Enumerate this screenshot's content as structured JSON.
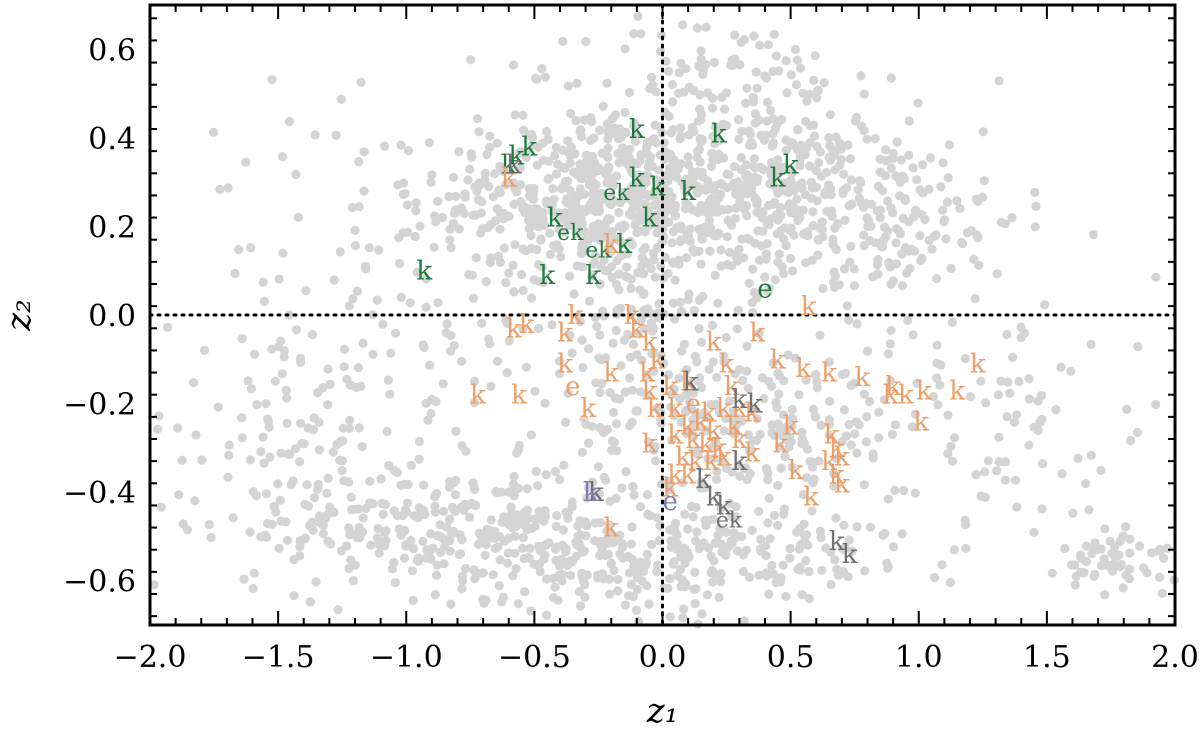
{
  "chart_data": {
    "type": "scatter",
    "xlabel": "z₁",
    "ylabel": "z₂",
    "xlim": [
      -2.0,
      2.0
    ],
    "ylim": [
      -0.7,
      0.7
    ],
    "x_ticks": [
      -2.0,
      -1.5,
      -1.0,
      -0.5,
      0.0,
      0.5,
      1.0,
      1.5,
      2.0
    ],
    "x_tick_labels": [
      "−2.0",
      "−1.5",
      "−1.0",
      "−0.5",
      "0.0",
      "0.5",
      "1.0",
      "1.5",
      "2.0"
    ],
    "y_ticks": [
      -0.6,
      -0.4,
      -0.2,
      0.0,
      0.2,
      0.4,
      0.6
    ],
    "y_tick_labels": [
      "−0.6",
      "−0.4",
      "−0.2",
      "0.0",
      "0.2",
      "0.4",
      "0.6"
    ],
    "grid": false,
    "reference_lines": {
      "x": 0.0,
      "y": 0.0,
      "style": "dotted"
    },
    "colors": {
      "background_points": "#d4d4d4",
      "green": "#1e7a3c",
      "orange": "#ee9e68",
      "gray": "#707070",
      "purple": "#7f7fb0"
    },
    "background_points": {
      "description_count_approx": 2000,
      "clusters": [
        {
          "cx": -0.3,
          "cy": 0.27,
          "sx": 0.28,
          "sy": 0.1,
          "n": 420
        },
        {
          "cx": 0.35,
          "cy": 0.28,
          "sx": 0.3,
          "sy": 0.1,
          "n": 420
        },
        {
          "cx": 0.9,
          "cy": 0.22,
          "sx": 0.25,
          "sy": 0.09,
          "n": 120
        },
        {
          "cx": 0.2,
          "cy": 0.55,
          "sx": 0.25,
          "sy": 0.06,
          "n": 70
        },
        {
          "cx": -0.1,
          "cy": 0.1,
          "sx": 0.15,
          "sy": 0.15,
          "n": 120
        },
        {
          "cx": 0.3,
          "cy": -0.25,
          "sx": 0.3,
          "sy": 0.12,
          "n": 240
        },
        {
          "cx": -0.8,
          "cy": -0.48,
          "sx": 0.4,
          "sy": 0.07,
          "n": 260
        },
        {
          "cx": -0.3,
          "cy": -0.55,
          "sx": 0.3,
          "sy": 0.06,
          "n": 160
        },
        {
          "cx": 0.4,
          "cy": -0.55,
          "sx": 0.3,
          "sy": 0.07,
          "n": 110
        },
        {
          "cx": 1.8,
          "cy": -0.55,
          "sx": 0.12,
          "sy": 0.04,
          "n": 60
        },
        {
          "cx": -1.4,
          "cy": -0.3,
          "sx": 0.3,
          "sy": 0.12,
          "n": 100
        },
        {
          "cx": -1.0,
          "cy": 0.05,
          "sx": 0.4,
          "sy": 0.2,
          "n": 120
        },
        {
          "cx": 1.3,
          "cy": -0.25,
          "sx": 0.35,
          "sy": 0.15,
          "n": 90
        },
        {
          "cx": 0.0,
          "cy": 0.0,
          "sx": 1.0,
          "sy": 0.35,
          "n": 160
        }
      ]
    },
    "series": [
      {
        "color": "green",
        "points": [
          {
            "x": -0.6,
            "y": 0.34,
            "label": "k"
          },
          {
            "x": -0.57,
            "y": 0.36,
            "label": "k"
          },
          {
            "x": -0.52,
            "y": 0.38,
            "label": "k"
          },
          {
            "x": -0.1,
            "y": 0.42,
            "label": "k"
          },
          {
            "x": 0.22,
            "y": 0.41,
            "label": "k"
          },
          {
            "x": 0.45,
            "y": 0.31,
            "label": "k"
          },
          {
            "x": 0.5,
            "y": 0.34,
            "label": "k"
          },
          {
            "x": -0.1,
            "y": 0.31,
            "label": "k"
          },
          {
            "x": -0.18,
            "y": 0.28,
            "label": "ek"
          },
          {
            "x": -0.02,
            "y": 0.29,
            "label": "k"
          },
          {
            "x": 0.1,
            "y": 0.28,
            "label": "k"
          },
          {
            "x": -0.42,
            "y": 0.22,
            "label": "k"
          },
          {
            "x": -0.36,
            "y": 0.19,
            "label": "ek"
          },
          {
            "x": -0.05,
            "y": 0.22,
            "label": "k"
          },
          {
            "x": -0.25,
            "y": 0.15,
            "label": "ek"
          },
          {
            "x": -0.15,
            "y": 0.16,
            "label": "k"
          },
          {
            "x": -0.93,
            "y": 0.1,
            "label": "k"
          },
          {
            "x": -0.45,
            "y": 0.09,
            "label": "k"
          },
          {
            "x": -0.27,
            "y": 0.09,
            "label": "k"
          },
          {
            "x": 0.4,
            "y": 0.06,
            "label": "e"
          }
        ]
      },
      {
        "color": "orange",
        "points": [
          {
            "x": -0.6,
            "y": 0.31,
            "label": "k"
          },
          {
            "x": -0.2,
            "y": 0.16,
            "label": "k"
          },
          {
            "x": 0.57,
            "y": 0.02,
            "label": "k"
          },
          {
            "x": -0.58,
            "y": -0.03,
            "label": "k"
          },
          {
            "x": -0.53,
            "y": -0.02,
            "label": "k"
          },
          {
            "x": -0.34,
            "y": 0.0,
            "label": "k"
          },
          {
            "x": -0.38,
            "y": -0.04,
            "label": "k"
          },
          {
            "x": -0.12,
            "y": 0.0,
            "label": "k"
          },
          {
            "x": -0.1,
            "y": -0.03,
            "label": "k"
          },
          {
            "x": -0.05,
            "y": -0.06,
            "label": "k"
          },
          {
            "x": 0.37,
            "y": -0.04,
            "label": "k"
          },
          {
            "x": 0.2,
            "y": -0.06,
            "label": "k"
          },
          {
            "x": 0.25,
            "y": -0.11,
            "label": "k"
          },
          {
            "x": 0.45,
            "y": -0.1,
            "label": "k"
          },
          {
            "x": 0.55,
            "y": -0.12,
            "label": "k"
          },
          {
            "x": -0.38,
            "y": -0.11,
            "label": "k"
          },
          {
            "x": -0.02,
            "y": -0.1,
            "label": "k"
          },
          {
            "x": -0.2,
            "y": -0.13,
            "label": "k"
          },
          {
            "x": -0.06,
            "y": -0.13,
            "label": "k"
          },
          {
            "x": 0.65,
            "y": -0.13,
            "label": "k"
          },
          {
            "x": 0.78,
            "y": -0.14,
            "label": "k"
          },
          {
            "x": 0.9,
            "y": -0.16,
            "label": "k"
          },
          {
            "x": 1.23,
            "y": -0.11,
            "label": "k"
          },
          {
            "x": -0.35,
            "y": -0.16,
            "label": "e"
          },
          {
            "x": -0.05,
            "y": -0.17,
            "label": "k"
          },
          {
            "x": 0.03,
            "y": -0.16,
            "label": "k"
          },
          {
            "x": 0.1,
            "y": -0.15,
            "label": "k"
          },
          {
            "x": 0.27,
            "y": -0.16,
            "label": "k"
          },
          {
            "x": -0.72,
            "y": -0.18,
            "label": "k"
          },
          {
            "x": -0.56,
            "y": -0.18,
            "label": "k"
          },
          {
            "x": 0.89,
            "y": -0.18,
            "label": "k"
          },
          {
            "x": 0.95,
            "y": -0.18,
            "label": "k"
          },
          {
            "x": 1.02,
            "y": -0.17,
            "label": "k"
          },
          {
            "x": 1.15,
            "y": -0.17,
            "label": "k"
          },
          {
            "x": -0.29,
            "y": -0.21,
            "label": "k"
          },
          {
            "x": -0.03,
            "y": -0.21,
            "label": "k"
          },
          {
            "x": 0.05,
            "y": -0.21,
            "label": "k"
          },
          {
            "x": 0.12,
            "y": -0.2,
            "label": "e"
          },
          {
            "x": 0.18,
            "y": -0.22,
            "label": "k"
          },
          {
            "x": 0.24,
            "y": -0.21,
            "label": "k"
          },
          {
            "x": 0.3,
            "y": -0.21,
            "label": "k"
          },
          {
            "x": 0.35,
            "y": -0.22,
            "label": "k"
          },
          {
            "x": 0.1,
            "y": -0.25,
            "label": "k"
          },
          {
            "x": 0.15,
            "y": -0.24,
            "label": "k"
          },
          {
            "x": 0.2,
            "y": -0.26,
            "label": "k"
          },
          {
            "x": 0.28,
            "y": -0.25,
            "label": "k"
          },
          {
            "x": 1.01,
            "y": -0.24,
            "label": "k"
          },
          {
            "x": 0.5,
            "y": -0.25,
            "label": "k"
          },
          {
            "x": 0.05,
            "y": -0.27,
            "label": "k"
          },
          {
            "x": 0.12,
            "y": -0.28,
            "label": "k"
          },
          {
            "x": 0.17,
            "y": -0.29,
            "label": "k"
          },
          {
            "x": 0.22,
            "y": -0.3,
            "label": "k"
          },
          {
            "x": 0.3,
            "y": -0.28,
            "label": "k"
          },
          {
            "x": 0.46,
            "y": -0.29,
            "label": "k"
          },
          {
            "x": 0.66,
            "y": -0.27,
            "label": "k"
          },
          {
            "x": 0.68,
            "y": -0.3,
            "label": "k"
          },
          {
            "x": -0.05,
            "y": -0.29,
            "label": "k"
          },
          {
            "x": 0.08,
            "y": -0.32,
            "label": "k"
          },
          {
            "x": 0.13,
            "y": -0.33,
            "label": "k"
          },
          {
            "x": 0.19,
            "y": -0.33,
            "label": "k"
          },
          {
            "x": 0.24,
            "y": -0.32,
            "label": "k"
          },
          {
            "x": 0.35,
            "y": -0.31,
            "label": "k"
          },
          {
            "x": 0.65,
            "y": -0.33,
            "label": "k"
          },
          {
            "x": 0.7,
            "y": -0.32,
            "label": "k"
          },
          {
            "x": 0.05,
            "y": -0.36,
            "label": "k"
          },
          {
            "x": 0.1,
            "y": -0.36,
            "label": "k"
          },
          {
            "x": 0.52,
            "y": -0.35,
            "label": "k"
          },
          {
            "x": 0.68,
            "y": -0.36,
            "label": "k"
          },
          {
            "x": 0.03,
            "y": -0.39,
            "label": "k"
          },
          {
            "x": 0.58,
            "y": -0.41,
            "label": "k"
          },
          {
            "x": 0.7,
            "y": -0.38,
            "label": "k"
          },
          {
            "x": -0.2,
            "y": -0.48,
            "label": "k"
          }
        ]
      },
      {
        "color": "gray",
        "points": [
          {
            "x": -0.58,
            "y": 0.34,
            "label": "k"
          },
          {
            "x": 0.11,
            "y": -0.15,
            "label": "k"
          },
          {
            "x": 0.3,
            "y": -0.19,
            "label": "k"
          },
          {
            "x": 0.36,
            "y": -0.2,
            "label": "k"
          },
          {
            "x": 0.3,
            "y": -0.33,
            "label": "k"
          },
          {
            "x": 0.16,
            "y": -0.37,
            "label": "k"
          },
          {
            "x": -0.26,
            "y": -0.4,
            "label": "k"
          },
          {
            "x": 0.2,
            "y": -0.41,
            "label": "k"
          },
          {
            "x": 0.24,
            "y": -0.43,
            "label": "k"
          },
          {
            "x": 0.26,
            "y": -0.46,
            "label": "ek"
          },
          {
            "x": 0.68,
            "y": -0.51,
            "label": "k"
          },
          {
            "x": 0.73,
            "y": -0.54,
            "label": "k"
          }
        ]
      },
      {
        "color": "purple",
        "points": [
          {
            "x": -0.28,
            "y": -0.4,
            "label": "k"
          },
          {
            "x": 0.03,
            "y": -0.42,
            "label": "e"
          }
        ]
      }
    ]
  }
}
